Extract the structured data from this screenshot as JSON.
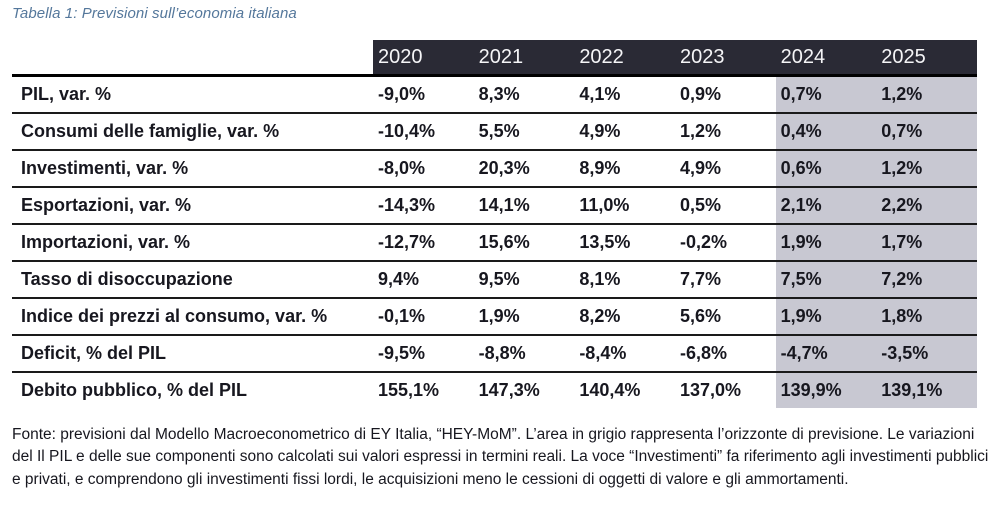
{
  "title": "Tabella 1: Previsioni sull’economia italiana",
  "table": {
    "years": [
      "2020",
      "2021",
      "2022",
      "2023",
      "2024",
      "2025"
    ],
    "forecast_start_index": 4,
    "forecast_years": [
      "2024",
      "2025"
    ],
    "rows": [
      {
        "label": "PIL, var. %",
        "values": [
          "-9,0%",
          "8,3%",
          "4,1%",
          "0,9%",
          "0,7%",
          "1,2%"
        ]
      },
      {
        "label": "Consumi delle famiglie, var. %",
        "values": [
          "-10,4%",
          "5,5%",
          "4,9%",
          "1,2%",
          "0,4%",
          "0,7%"
        ]
      },
      {
        "label": "Investimenti, var. %",
        "values": [
          "-8,0%",
          "20,3%",
          "8,9%",
          "4,9%",
          "0,6%",
          "1,2%"
        ]
      },
      {
        "label": "Esportazioni, var. %",
        "values": [
          "-14,3%",
          "14,1%",
          "11,0%",
          "0,5%",
          "2,1%",
          "2,2%"
        ]
      },
      {
        "label": "Importazioni, var. %",
        "values": [
          "-12,7%",
          "15,6%",
          "13,5%",
          "-0,2%",
          "1,9%",
          "1,7%"
        ]
      },
      {
        "label": "Tasso di disoccupazione",
        "values": [
          "9,4%",
          "9,5%",
          "8,1%",
          "7,7%",
          "7,5%",
          "7,2%"
        ]
      },
      {
        "label": "Indice dei prezzi al consumo, var. %",
        "values": [
          "-0,1%",
          "1,9%",
          "8,2%",
          "5,6%",
          "1,9%",
          "1,8%"
        ]
      },
      {
        "label": "Deficit, % del PIL",
        "values": [
          "-9,5%",
          "-8,8%",
          "-8,4%",
          "-6,8%",
          "-4,7%",
          "-3,5%"
        ]
      },
      {
        "label": "Debito pubblico, % del PIL",
        "values": [
          "155,1%",
          "147,3%",
          "140,4%",
          "137,0%",
          "139,9%",
          "139,1%"
        ]
      }
    ]
  },
  "footnote": "Fonte: previsioni dal Modello Macroeconometrico di EY Italia, “HEY-MoM”. L’area in grigio rappresenta l’orizzonte di previsione. Le variazioni del Il PIL e delle sue componenti sono calcolati sui valori espressi in termini reali. La voce “Investimenti” fa riferimento agli investimenti pubblici e privati, e comprendono gli investimenti fissi lordi, le acquisizioni meno le cessioni di oggetti di valore e gli ammortamenti.",
  "colors": {
    "header_bg": "#2a2a35",
    "forecast_bg": "#c8c8d2",
    "title_text": "#54779b",
    "row_line": "#1a1a1a",
    "body_text": "#17171f"
  }
}
